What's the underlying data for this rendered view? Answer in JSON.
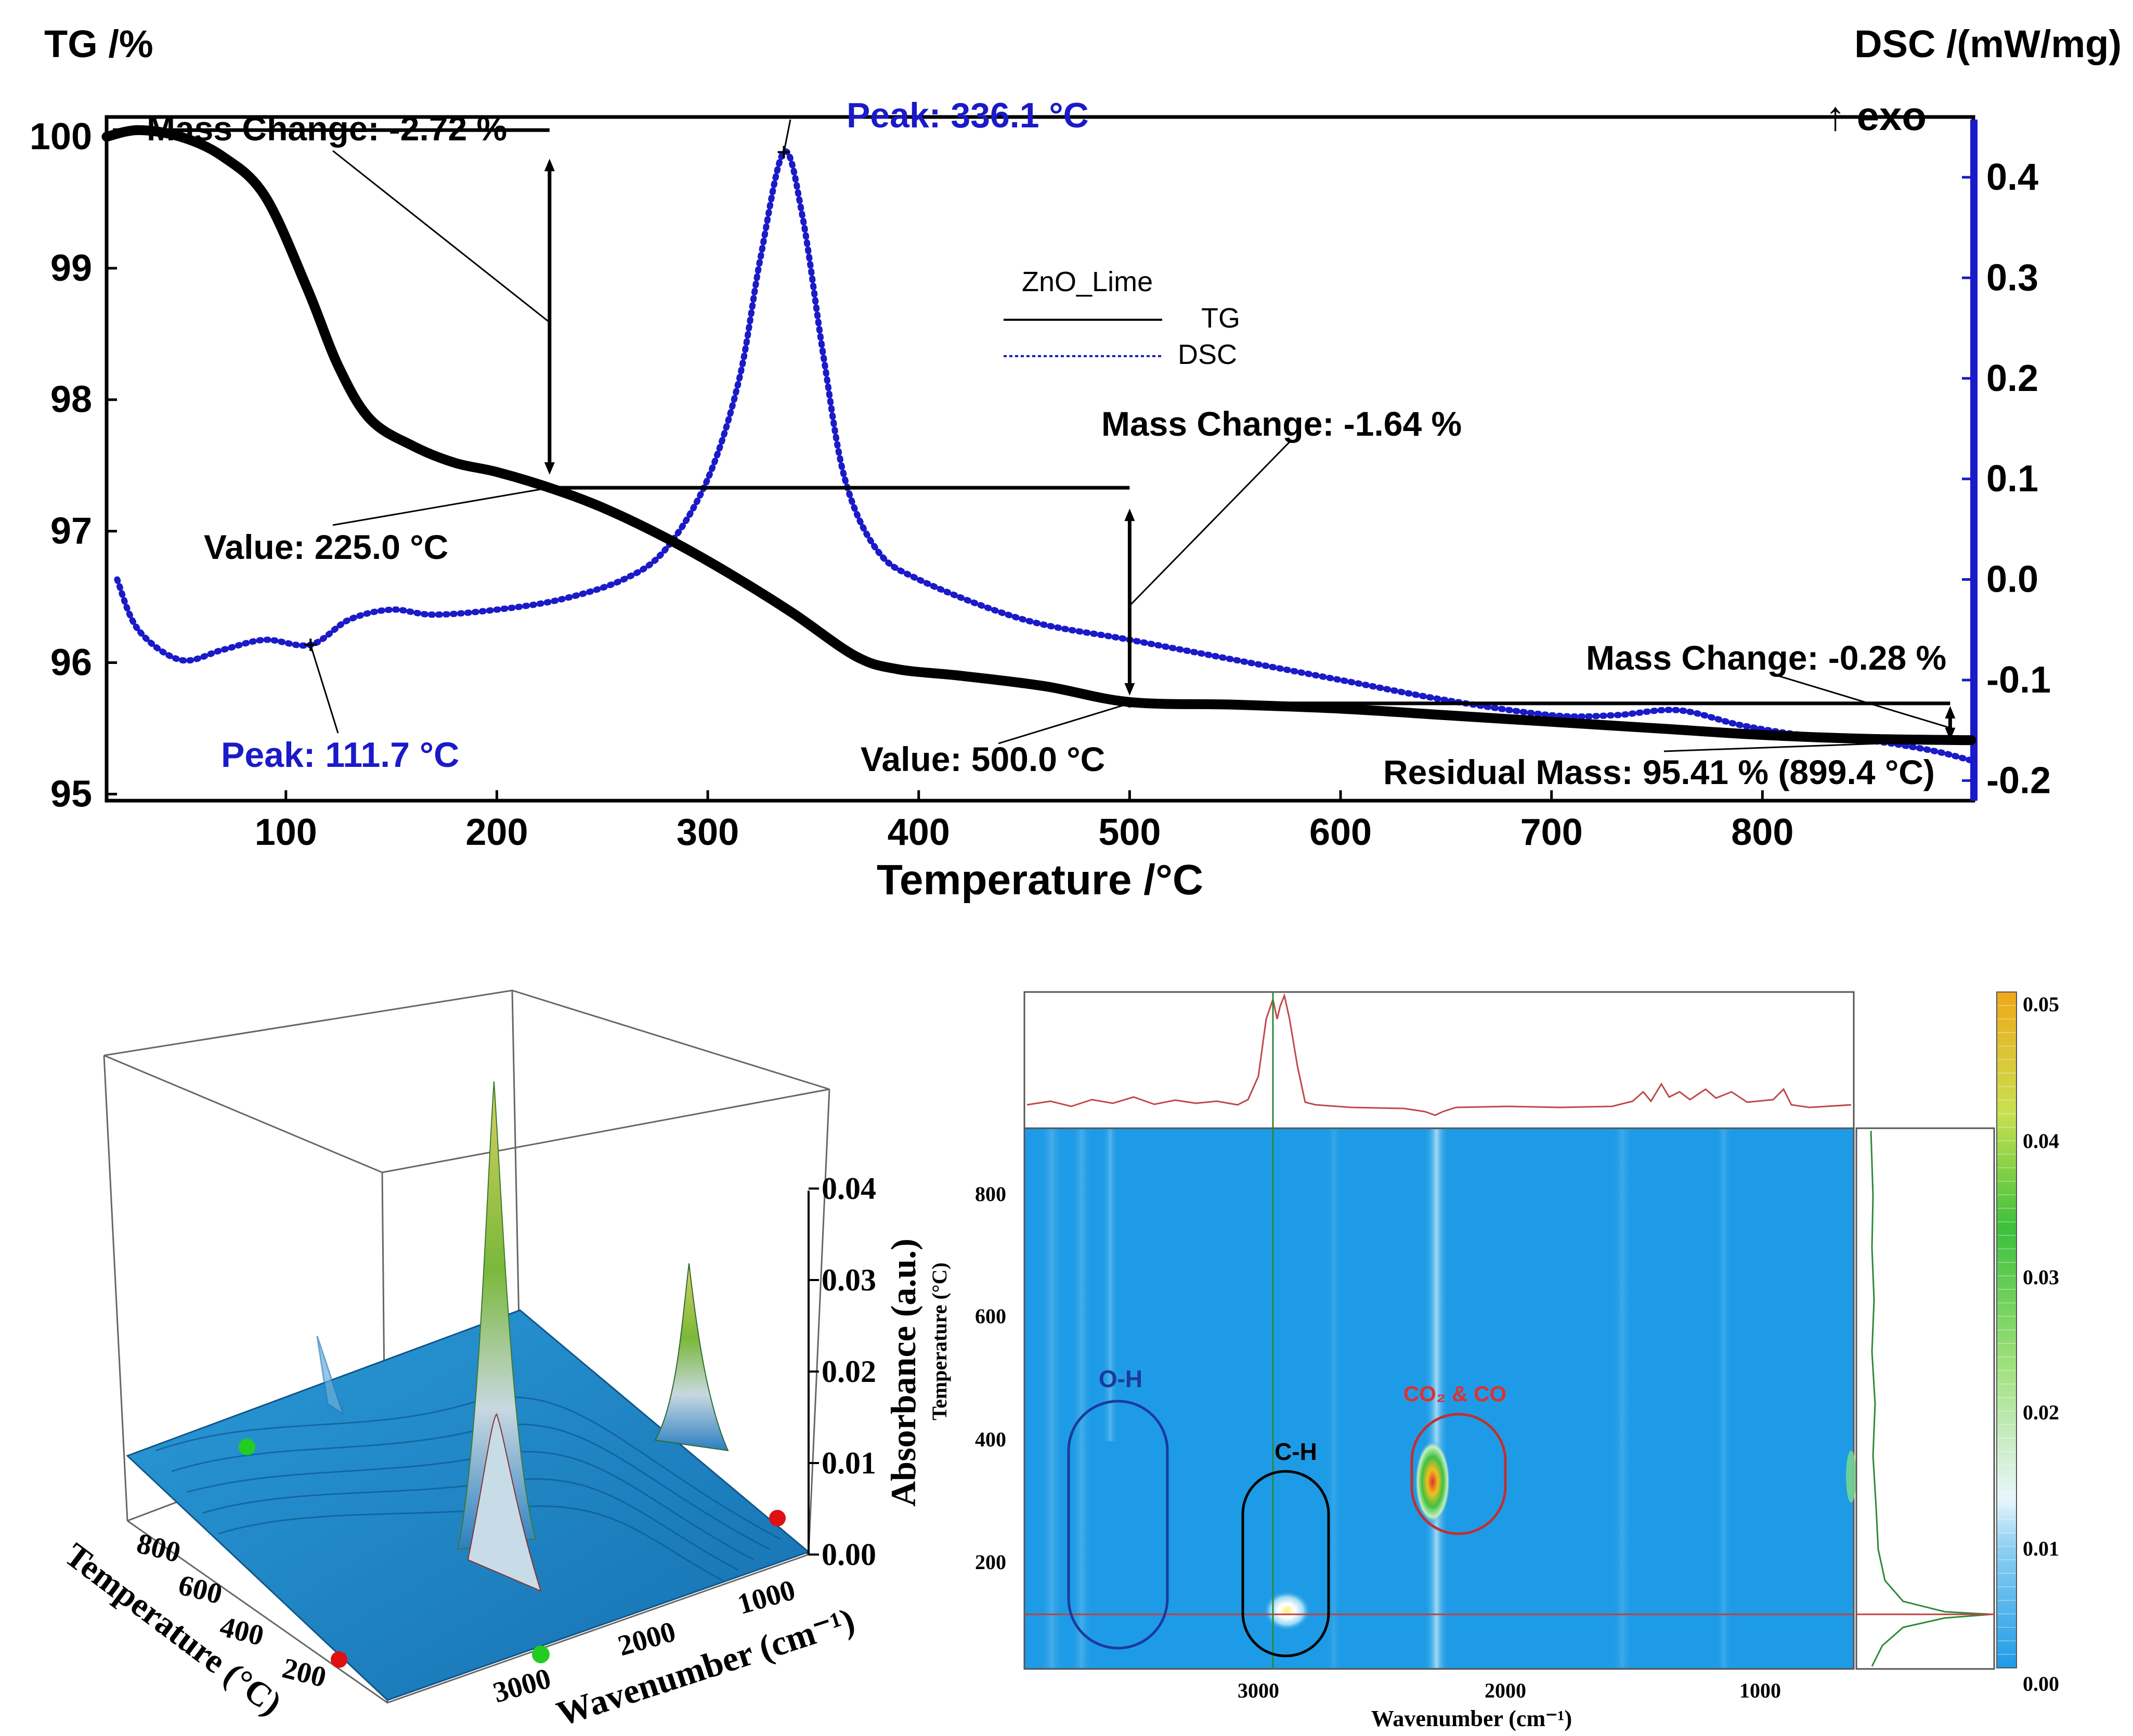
{
  "colors": {
    "tg": "#000000",
    "dsc": "#1a1ac8",
    "heat_bg": "#1e9be6",
    "surface": "#1a8bd0",
    "cut": "#c04040",
    "cut_v": "#2d8a3a",
    "oh_ring": "#1a3a9a",
    "ch_ring": "#000000",
    "co_ring": "#c03030"
  },
  "chart_data": [
    {
      "type": "line",
      "title": "",
      "legend": {
        "title": "ZnO_Lime",
        "entries": [
          "TG",
          "DSC"
        ],
        "position": "top-center"
      },
      "xlabel": "Temperature /°C",
      "xlim": [
        15,
        900
      ],
      "xticks": [
        100,
        200,
        300,
        400,
        500,
        600,
        700,
        800
      ],
      "y_left_label": "TG /%",
      "y_left_lim": [
        94.95,
        100.15
      ],
      "y_left_ticks": [
        95,
        96,
        97,
        98,
        99,
        100
      ],
      "y_right_label": "DSC /(mW/mg)",
      "y_right_note": "↑ exo",
      "y_right_lim": [
        -0.22,
        0.46
      ],
      "y_right_ticks": [
        "0.4",
        "0.3",
        "0.2",
        "0.1",
        "0.0",
        "-0.1",
        "-0.2"
      ],
      "y_right_tick_values": [
        0.4,
        0.3,
        0.2,
        0.1,
        0.0,
        -0.1,
        -0.2
      ],
      "series": [
        {
          "name": "TG",
          "axis": "left",
          "style": "solid",
          "x": [
            15,
            30,
            50,
            70,
            90,
            110,
            125,
            140,
            160,
            180,
            200,
            225,
            250,
            280,
            310,
            340,
            370,
            390,
            420,
            460,
            500,
            550,
            600,
            650,
            700,
            750,
            800,
            850,
            899
          ],
          "y": [
            100.0,
            100.05,
            100.0,
            99.85,
            99.55,
            98.85,
            98.25,
            97.85,
            97.65,
            97.52,
            97.45,
            97.33,
            97.18,
            96.95,
            96.68,
            96.38,
            96.05,
            95.95,
            95.9,
            95.82,
            95.7,
            95.68,
            95.65,
            95.6,
            95.55,
            95.5,
            95.45,
            95.42,
            95.41
          ]
        },
        {
          "name": "DSC",
          "axis": "right",
          "style": "dotted",
          "x": [
            20,
            30,
            50,
            70,
            90,
            111.7,
            130,
            150,
            170,
            200,
            230,
            260,
            280,
            300,
            315,
            325,
            336.1,
            345,
            355,
            365,
            380,
            400,
            450,
            500,
            550,
            600,
            650,
            700,
            730,
            760,
            790,
            820,
            850,
            880,
            899
          ],
          "y": [
            0.0,
            -0.05,
            -0.08,
            -0.07,
            -0.06,
            -0.065,
            -0.04,
            -0.03,
            -0.035,
            -0.03,
            -0.02,
            0.0,
            0.03,
            0.1,
            0.2,
            0.32,
            0.425,
            0.36,
            0.22,
            0.1,
            0.03,
            0.0,
            -0.04,
            -0.06,
            -0.08,
            -0.1,
            -0.12,
            -0.135,
            -0.135,
            -0.13,
            -0.145,
            -0.155,
            -0.16,
            -0.17,
            -0.18
          ]
        }
      ],
      "annotations": {
        "mass_change_1": "Mass Change: -2.72 %",
        "mass_change_2": "Mass Change: -1.64 %",
        "mass_change_3": "Mass Change: -0.28 %",
        "value_1": "Value: 225.0 °C",
        "value_2": "Value: 500.0 °C",
        "residual": "Residual Mass: 95.41 % (899.4 °C)",
        "peak_1": "Peak: 336.1 °C",
        "peak_2": "Peak: 111.7 °C"
      }
    },
    {
      "type": "surface",
      "xlabel": "Wavenumber (cm⁻¹)",
      "ylabel": "Temperature (°C)",
      "zlabel": "Absorbance (a.u.)",
      "xticks": [
        "3000",
        "2000",
        "1000"
      ],
      "yticks": [
        "800",
        "600",
        "400",
        "200"
      ],
      "zticks": [
        "0.04",
        "0.03",
        "0.02",
        "0.01",
        "0.00"
      ],
      "zlim": [
        0,
        0.05
      ],
      "peaks": [
        {
          "wavenumber": 2930,
          "temperature": 115,
          "absorbance": 0.05
        },
        {
          "wavenumber": 2350,
          "temperature": 335,
          "absorbance": 0.033
        }
      ]
    },
    {
      "type": "heatmap",
      "xlabel": "Wavenumber (cm⁻¹)",
      "ylabel": "Temperature (°C)",
      "xticks": [
        "3000",
        "2000",
        "1000"
      ],
      "xlim": [
        4000,
        650
      ],
      "yticks": [
        "800",
        "600",
        "400",
        "200"
      ],
      "ylim": [
        0,
        900
      ],
      "colorbar_ticks": [
        "0.05",
        "0.04",
        "0.03",
        "0.02",
        "0.01",
        "0.00"
      ],
      "colorbar_lim": [
        0,
        0.05
      ],
      "regions": [
        {
          "label": "O-H",
          "wavenumber": 3550,
          "temperature_range": [
            40,
            440
          ]
        },
        {
          "label": "C-H",
          "wavenumber": 2930,
          "temperature_range": [
            20,
            330
          ]
        },
        {
          "label": "CO₂ & CO",
          "wavenumber": 2200,
          "temperature_range": [
            270,
            410
          ]
        }
      ],
      "cursor": {
        "wavenumber": 2930,
        "temperature": 115
      }
    }
  ]
}
